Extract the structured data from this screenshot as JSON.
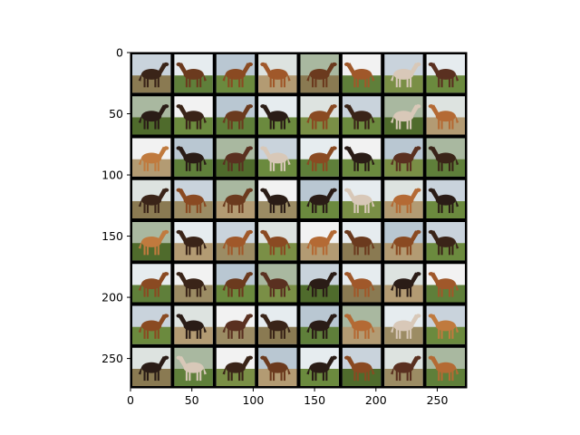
{
  "figure": {
    "description_type": "image grid",
    "background": "#ffffff",
    "grid": {
      "rows": 8,
      "cols": 8,
      "separator_color": "#000000"
    }
  },
  "axes": {
    "xlim": [
      0,
      274
    ],
    "ylim_inverted": [
      274,
      0
    ],
    "x_ticks": [
      {
        "value": 0,
        "label": "0"
      },
      {
        "value": 50,
        "label": "50"
      },
      {
        "value": 100,
        "label": "100"
      },
      {
        "value": 150,
        "label": "150"
      },
      {
        "value": 200,
        "label": "200"
      },
      {
        "value": 250,
        "label": "250"
      }
    ],
    "y_ticks": [
      {
        "value": 0,
        "label": "0"
      },
      {
        "value": 50,
        "label": "50"
      },
      {
        "value": 100,
        "label": "100"
      },
      {
        "value": 150,
        "label": "150"
      },
      {
        "value": 200,
        "label": "200"
      },
      {
        "value": 250,
        "label": "250"
      }
    ]
  },
  "tiles": {
    "palette": {
      "sky": [
        "#c9d3dc",
        "#e6ecef",
        "#b9c7d2",
        "#dde3e0",
        "#a9b8a0",
        "#f2f2f2"
      ],
      "ground": [
        "#5f7f3a",
        "#7a8f46",
        "#8a7a52",
        "#6b8a3e",
        "#9c8c64",
        "#4f6b2c",
        "#b39b73"
      ],
      "horse": [
        "#6b3a1e",
        "#3a2418",
        "#8a4a22",
        "#a0582a",
        "#2a1c16",
        "#c07a3e",
        "#d8c8b8",
        "#5a3020",
        "#b46a34"
      ]
    },
    "items": [
      {
        "sky": 0,
        "ground": 2,
        "horse": 1,
        "face": "right"
      },
      {
        "sky": 1,
        "ground": 0,
        "horse": 0,
        "face": "left"
      },
      {
        "sky": 2,
        "ground": 3,
        "horse": 2,
        "face": "right"
      },
      {
        "sky": 3,
        "ground": 6,
        "horse": 3,
        "face": "left"
      },
      {
        "sky": 4,
        "ground": 2,
        "horse": 0,
        "face": "right"
      },
      {
        "sky": 5,
        "ground": 0,
        "horse": 3,
        "face": "left"
      },
      {
        "sky": 0,
        "ground": 1,
        "horse": 6,
        "face": "right"
      },
      {
        "sky": 1,
        "ground": 3,
        "horse": 7,
        "face": "left"
      },
      {
        "sky": 4,
        "ground": 5,
        "horse": 4,
        "face": "right"
      },
      {
        "sky": 5,
        "ground": 3,
        "horse": 1,
        "face": "left"
      },
      {
        "sky": 2,
        "ground": 0,
        "horse": 0,
        "face": "right"
      },
      {
        "sky": 1,
        "ground": 3,
        "horse": 4,
        "face": "left"
      },
      {
        "sky": 3,
        "ground": 1,
        "horse": 2,
        "face": "right"
      },
      {
        "sky": 0,
        "ground": 3,
        "horse": 1,
        "face": "left"
      },
      {
        "sky": 4,
        "ground": 5,
        "horse": 6,
        "face": "right"
      },
      {
        "sky": 3,
        "ground": 6,
        "horse": 8,
        "face": "left"
      },
      {
        "sky": 5,
        "ground": 6,
        "horse": 5,
        "face": "right"
      },
      {
        "sky": 2,
        "ground": 0,
        "horse": 4,
        "face": "left"
      },
      {
        "sky": 4,
        "ground": 5,
        "horse": 7,
        "face": "right"
      },
      {
        "sky": 0,
        "ground": 3,
        "horse": 6,
        "face": "left"
      },
      {
        "sky": 1,
        "ground": 0,
        "horse": 2,
        "face": "right"
      },
      {
        "sky": 5,
        "ground": 3,
        "horse": 4,
        "face": "left"
      },
      {
        "sky": 2,
        "ground": 1,
        "horse": 7,
        "face": "right"
      },
      {
        "sky": 4,
        "ground": 0,
        "horse": 1,
        "face": "left"
      },
      {
        "sky": 3,
        "ground": 2,
        "horse": 1,
        "face": "right"
      },
      {
        "sky": 0,
        "ground": 4,
        "horse": 2,
        "face": "left"
      },
      {
        "sky": 4,
        "ground": 6,
        "horse": 0,
        "face": "right"
      },
      {
        "sky": 5,
        "ground": 4,
        "horse": 4,
        "face": "left"
      },
      {
        "sky": 2,
        "ground": 3,
        "horse": 4,
        "face": "right"
      },
      {
        "sky": 1,
        "ground": 1,
        "horse": 6,
        "face": "left"
      },
      {
        "sky": 3,
        "ground": 6,
        "horse": 8,
        "face": "right"
      },
      {
        "sky": 0,
        "ground": 3,
        "horse": 4,
        "face": "left"
      },
      {
        "sky": 4,
        "ground": 5,
        "horse": 5,
        "face": "right"
      },
      {
        "sky": 1,
        "ground": 6,
        "horse": 1,
        "face": "left"
      },
      {
        "sky": 0,
        "ground": 4,
        "horse": 3,
        "face": "right"
      },
      {
        "sky": 3,
        "ground": 1,
        "horse": 2,
        "face": "left"
      },
      {
        "sky": 5,
        "ground": 6,
        "horse": 8,
        "face": "right"
      },
      {
        "sky": 1,
        "ground": 2,
        "horse": 0,
        "face": "left"
      },
      {
        "sky": 2,
        "ground": 6,
        "horse": 2,
        "face": "right"
      },
      {
        "sky": 0,
        "ground": 3,
        "horse": 1,
        "face": "left"
      },
      {
        "sky": 1,
        "ground": 0,
        "horse": 2,
        "face": "right"
      },
      {
        "sky": 5,
        "ground": 4,
        "horse": 1,
        "face": "left"
      },
      {
        "sky": 2,
        "ground": 3,
        "horse": 0,
        "face": "right"
      },
      {
        "sky": 4,
        "ground": 1,
        "horse": 7,
        "face": "left"
      },
      {
        "sky": 0,
        "ground": 5,
        "horse": 4,
        "face": "right"
      },
      {
        "sky": 1,
        "ground": 2,
        "horse": 3,
        "face": "left"
      },
      {
        "sky": 3,
        "ground": 6,
        "horse": 4,
        "face": "right"
      },
      {
        "sky": 5,
        "ground": 0,
        "horse": 3,
        "face": "left"
      },
      {
        "sky": 0,
        "ground": 3,
        "horse": 2,
        "face": "right"
      },
      {
        "sky": 3,
        "ground": 6,
        "horse": 4,
        "face": "left"
      },
      {
        "sky": 5,
        "ground": 4,
        "horse": 7,
        "face": "right"
      },
      {
        "sky": 1,
        "ground": 2,
        "horse": 1,
        "face": "left"
      },
      {
        "sky": 2,
        "ground": 0,
        "horse": 4,
        "face": "right"
      },
      {
        "sky": 4,
        "ground": 6,
        "horse": 8,
        "face": "left"
      },
      {
        "sky": 1,
        "ground": 4,
        "horse": 6,
        "face": "right"
      },
      {
        "sky": 0,
        "ground": 3,
        "horse": 5,
        "face": "left"
      },
      {
        "sky": 3,
        "ground": 2,
        "horse": 4,
        "face": "right"
      },
      {
        "sky": 4,
        "ground": 0,
        "horse": 6,
        "face": "left"
      },
      {
        "sky": 5,
        "ground": 1,
        "horse": 1,
        "face": "right"
      },
      {
        "sky": 2,
        "ground": 6,
        "horse": 0,
        "face": "left"
      },
      {
        "sky": 1,
        "ground": 3,
        "horse": 4,
        "face": "right"
      },
      {
        "sky": 0,
        "ground": 5,
        "horse": 2,
        "face": "left"
      },
      {
        "sky": 3,
        "ground": 4,
        "horse": 7,
        "face": "right"
      },
      {
        "sky": 4,
        "ground": 0,
        "horse": 8,
        "face": "left"
      }
    ]
  }
}
